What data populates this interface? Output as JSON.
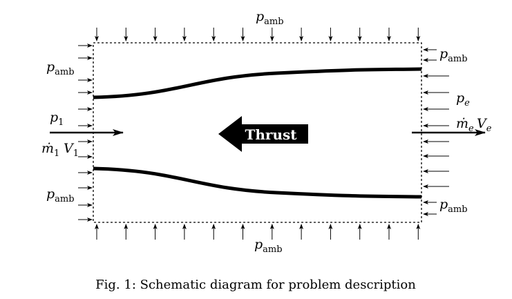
{
  "diagram": {
    "labels": [
      {
        "symbol": "p",
        "sub": "amb"
      },
      {
        "symbol": "p",
        "sub": "amb"
      },
      {
        "symbol": "p",
        "sub": "1"
      },
      {
        "symbol": "p",
        "sub": "amb"
      },
      {
        "symbol": "p",
        "sub": "amb"
      },
      {
        "symbol": "p",
        "sub": "amb"
      },
      {
        "symbol": "p",
        "sub": "e"
      },
      {
        "symbol": "p",
        "sub": "amb"
      }
    ],
    "inlet_flux": [
      {
        "symbol": "ṁ",
        "sub": "1"
      },
      {
        "symbol": "V",
        "sub": "1"
      }
    ],
    "exit_flux": [
      {
        "symbol": "ṁ",
        "sub": "e"
      },
      {
        "symbol": "V",
        "sub": "e"
      }
    ],
    "thrust": "Thrust",
    "caption": "Fig. 1: Schematic diagram for problem description"
  }
}
